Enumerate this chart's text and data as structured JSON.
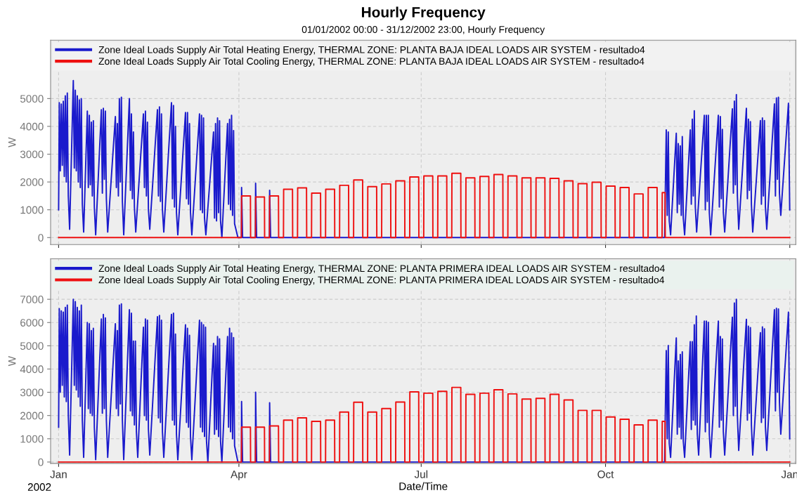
{
  "chart_data": [
    {
      "type": "line",
      "title": "Hourly Frequency",
      "subtitle": "01/01/2002 00:00 - 31/12/2002 23:00, Hourly Frequency",
      "ylabel": "W",
      "xlim": [
        "2001-12-28",
        "2003-01-04"
      ],
      "xticks": [
        {
          "value": "2002-01-01",
          "label": null
        },
        {
          "value": "2002-04-01",
          "label": null
        },
        {
          "value": "2002-07-01",
          "label": null
        },
        {
          "value": "2002-10-01",
          "label": null
        },
        {
          "value": "2003-01-01",
          "label": null
        }
      ],
      "ylim": [
        -250,
        7100
      ],
      "yticks": [
        0,
        1000,
        2000,
        3000,
        4000,
        5000
      ],
      "tick_labels": "y",
      "grid": true,
      "legend": "top",
      "line_style": "solid",
      "marker": "none",
      "series": [
        {
          "name": "Zone Ideal Loads Supply Air Total Heating Energy, THERMAL ZONE: PLANTA BAJA IDEAL LOADS AIR SYSTEM - resultado4",
          "color": "#1a1acc",
          "x": [
            "2002-01-01T00:00",
            "2002-01-01T08:00",
            "2002-01-01T20:00",
            "2002-01-02T08:00",
            "2002-01-02T20:00",
            "2002-01-03T08:00",
            "2002-01-03T20:00",
            "2002-01-04T08:00",
            "2002-01-04T20:00",
            "2002-01-05T08:00",
            "2002-01-05T20:00",
            "2002-01-06T12:00",
            "2002-01-08T08:00",
            "2002-01-08T20:00",
            "2002-01-09T08:00",
            "2002-01-09T20:00",
            "2002-01-10T08:00",
            "2002-01-10T20:00",
            "2002-01-11T08:00",
            "2002-01-11T20:00",
            "2002-01-12T08:00",
            "2002-01-12T20:00",
            "2002-01-13T12:00",
            "2002-01-15T08:00",
            "2002-01-15T20:00",
            "2002-01-16T08:00",
            "2002-01-16T20:00",
            "2002-01-17T08:00",
            "2002-01-17T20:00",
            "2002-01-18T08:00",
            "2002-01-18T20:00",
            "2002-01-19T12:00",
            "2002-01-22T08:00",
            "2002-01-22T20:00",
            "2002-01-23T08:00",
            "2002-01-23T20:00",
            "2002-01-24T08:00",
            "2002-01-24T20:00",
            "2002-01-25T12:00",
            "2002-01-29T08:00",
            "2002-01-29T20:00",
            "2002-01-30T08:00",
            "2002-01-30T20:00",
            "2002-01-31T08:00",
            "2002-01-31T20:00",
            "2002-02-01T08:00",
            "2002-02-01T20:00",
            "2002-02-02T12:00",
            "2002-02-05T08:00",
            "2002-02-05T20:00",
            "2002-02-06T08:00",
            "2002-02-06T20:00",
            "2002-02-07T08:00",
            "2002-02-07T20:00",
            "2002-02-08T12:00",
            "2002-02-12T08:00",
            "2002-02-12T20:00",
            "2002-02-13T08:00",
            "2002-02-13T20:00",
            "2002-02-14T08:00",
            "2002-02-14T20:00",
            "2002-02-15T12:00",
            "2002-02-19T08:00",
            "2002-02-19T20:00",
            "2002-02-20T08:00",
            "2002-02-20T20:00",
            "2002-02-21T08:00",
            "2002-02-21T20:00",
            "2002-02-22T12:00",
            "2002-02-26T08:00",
            "2002-02-26T20:00",
            "2002-02-27T08:00",
            "2002-02-27T20:00",
            "2002-02-28T08:00",
            "2002-02-28T20:00",
            "2002-03-01T12:00",
            "2002-03-05T08:00",
            "2002-03-05T20:00",
            "2002-03-06T08:00",
            "2002-03-06T20:00",
            "2002-03-07T08:00",
            "2002-03-07T20:00",
            "2002-03-08T12:00",
            "2002-03-12T08:00",
            "2002-03-12T20:00",
            "2002-03-13T08:00",
            "2002-03-13T20:00",
            "2002-03-14T08:00",
            "2002-03-14T20:00",
            "2002-03-15T12:00",
            "2002-03-19T08:00",
            "2002-03-19T20:00",
            "2002-03-20T08:00",
            "2002-03-20T20:00",
            "2002-03-21T08:00",
            "2002-03-21T20:00",
            "2002-03-22T08:00",
            "2002-03-22T20:00",
            "2002-03-23T12:00",
            "2002-03-26T08:00",
            "2002-03-26T20:00",
            "2002-03-27T08:00",
            "2002-03-27T20:00",
            "2002-03-28T08:00",
            "2002-03-28T20:00",
            "2002-03-29T08:00",
            "2002-03-29T20:00",
            "2002-03-31T12:00",
            "2002-04-02T06:00",
            "2002-04-02T08:00",
            "2002-04-02T20:00",
            "2002-04-09T06:00",
            "2002-04-09T08:00",
            "2002-04-09T20:00",
            "2002-04-16T06:00",
            "2002-04-16T08:00",
            "2002-04-16T20:00",
            "2002-10-30T12:00",
            "2002-10-31T08:00",
            "2002-10-31T20:00",
            "2002-11-01T08:00",
            "2002-11-01T20:00",
            "2002-11-02T12:00",
            "2002-11-05T08:00",
            "2002-11-05T20:00",
            "2002-11-06T08:00",
            "2002-11-06T20:00",
            "2002-11-07T08:00",
            "2002-11-07T20:00",
            "2002-11-08T08:00",
            "2002-11-08T20:00",
            "2002-11-09T12:00",
            "2002-11-12T08:00",
            "2002-11-12T20:00",
            "2002-11-13T08:00",
            "2002-11-13T20:00",
            "2002-11-14T08:00",
            "2002-11-14T20:00",
            "2002-11-15T12:00",
            "2002-11-19T08:00",
            "2002-11-19T20:00",
            "2002-11-20T08:00",
            "2002-11-20T20:00",
            "2002-11-21T08:00",
            "2002-11-21T20:00",
            "2002-11-22T12:00",
            "2002-11-26T08:00",
            "2002-11-26T20:00",
            "2002-11-27T08:00",
            "2002-11-27T20:00",
            "2002-11-28T08:00",
            "2002-11-28T20:00",
            "2002-11-29T12:00",
            "2002-12-03T08:00",
            "2002-12-03T20:00",
            "2002-12-04T08:00",
            "2002-12-04T20:00",
            "2002-12-05T08:00",
            "2002-12-05T20:00",
            "2002-12-06T12:00",
            "2002-12-10T08:00",
            "2002-12-10T20:00",
            "2002-12-11T08:00",
            "2002-12-11T20:00",
            "2002-12-12T08:00",
            "2002-12-12T20:00",
            "2002-12-13T12:00",
            "2002-12-17T08:00",
            "2002-12-17T20:00",
            "2002-12-18T08:00",
            "2002-12-18T20:00",
            "2002-12-19T08:00",
            "2002-12-19T20:00",
            "2002-12-20T12:00",
            "2002-12-24T08:00",
            "2002-12-24T20:00",
            "2002-12-25T08:00",
            "2002-12-25T20:00",
            "2002-12-26T08:00",
            "2002-12-26T20:00",
            "2002-12-27T12:00",
            "2002-12-31T08:00",
            "2002-12-31T23:00"
          ],
          "values": [
            1000,
            4850,
            2400,
            4800,
            2600,
            4900,
            2200,
            5100,
            2000,
            5200,
            1500,
            300,
            5650,
            2500,
            5300,
            2400,
            5100,
            2000,
            4950,
            1800,
            5000,
            1200,
            200,
            4550,
            1800,
            4400,
            1900,
            4150,
            1500,
            4200,
            1100,
            100,
            4600,
            1600,
            4650,
            2100,
            4550,
            1400,
            200,
            4350,
            1800,
            4100,
            1500,
            5000,
            2000,
            5050,
            1300,
            100,
            5000,
            1700,
            4450,
            1400,
            3800,
            1100,
            200,
            4450,
            1800,
            4550,
            1500,
            4150,
            1000,
            300,
            4600,
            1500,
            4700,
            1300,
            4450,
            1000,
            200,
            4850,
            1400,
            4750,
            1100,
            4000,
            900,
            100,
            4500,
            1400,
            4500,
            1200,
            4100,
            900,
            100,
            4450,
            1000,
            4400,
            900,
            4300,
            700,
            100,
            3800,
            700,
            4100,
            600,
            4300,
            900,
            4200,
            600,
            0,
            4100,
            1200,
            4250,
            1000,
            4400,
            800,
            3850,
            500,
            0,
            0,
            1800,
            0,
            0,
            1950,
            0,
            0,
            1700,
            0,
            0,
            3870,
            800,
            3800,
            600,
            100,
            3750,
            900,
            3380,
            1200,
            3300,
            800,
            3630,
            700,
            100,
            3870,
            1200,
            4260,
            1500,
            4560,
            1100,
            200,
            4400,
            1000,
            4400,
            1300,
            4400,
            900,
            100,
            4400,
            1100,
            4350,
            1400,
            3890,
            900,
            200,
            4630,
            1600,
            4910,
            1900,
            5140,
            1500,
            300,
            4650,
            1400,
            4260,
            1700,
            4170,
            1200,
            200,
            4210,
            1200,
            4300,
            1500,
            4210,
            1100,
            300,
            4810,
            1500,
            5020,
            2100,
            5050,
            1600,
            800,
            4830,
            1000
          ]
        },
        {
          "name": "Zone Ideal Loads Supply Air Total Cooling Energy, THERMAL ZONE: PLANTA BAJA IDEAL LOADS AIR SYSTEM - resultado4",
          "color": "#ee1111",
          "x": [
            "2002-01-01T00:00",
            "2002-04-02T06:00",
            "2002-04-02T08:00",
            "2002-04-06T18:00",
            "2002-04-06T20:00",
            "2002-04-09T06:00",
            "2002-04-09T08:00",
            "2002-04-13T18:00",
            "2002-04-13T20:00",
            "2002-04-16T06:00",
            "2002-04-16T08:00",
            "2002-04-20T18:00",
            "2002-04-20T20:00",
            "2002-04-23T06:00",
            "2002-04-23T08:00",
            "2002-04-27T18:00",
            "2002-04-27T20:00",
            "2002-04-30T06:00",
            "2002-04-30T08:00",
            "2002-05-04T18:00",
            "2002-05-04T20:00",
            "2002-05-07T06:00",
            "2002-05-07T08:00",
            "2002-05-11T18:00",
            "2002-05-11T20:00",
            "2002-05-14T06:00",
            "2002-05-14T08:00",
            "2002-05-18T18:00",
            "2002-05-18T20:00",
            "2002-05-21T06:00",
            "2002-05-21T08:00",
            "2002-05-25T18:00",
            "2002-05-25T20:00",
            "2002-05-28T06:00",
            "2002-05-28T08:00",
            "2002-06-01T18:00",
            "2002-06-01T20:00",
            "2002-06-04T06:00",
            "2002-06-04T08:00",
            "2002-06-08T18:00",
            "2002-06-08T20:00",
            "2002-06-11T06:00",
            "2002-06-11T08:00",
            "2002-06-15T18:00",
            "2002-06-15T20:00",
            "2002-06-18T06:00",
            "2002-06-18T08:00",
            "2002-06-22T18:00",
            "2002-06-22T20:00",
            "2002-06-25T06:00",
            "2002-06-25T08:00",
            "2002-06-29T18:00",
            "2002-06-29T20:00",
            "2002-07-02T06:00",
            "2002-07-02T08:00",
            "2002-07-06T18:00",
            "2002-07-06T20:00",
            "2002-07-09T06:00",
            "2002-07-09T08:00",
            "2002-07-13T18:00",
            "2002-07-13T20:00",
            "2002-07-16T06:00",
            "2002-07-16T08:00",
            "2002-07-20T18:00",
            "2002-07-20T20:00",
            "2002-07-23T06:00",
            "2002-07-23T08:00",
            "2002-07-27T18:00",
            "2002-07-27T20:00",
            "2002-07-30T06:00",
            "2002-07-30T08:00",
            "2002-08-03T18:00",
            "2002-08-03T20:00",
            "2002-08-06T06:00",
            "2002-08-06T08:00",
            "2002-08-10T18:00",
            "2002-08-10T20:00",
            "2002-08-13T06:00",
            "2002-08-13T08:00",
            "2002-08-17T18:00",
            "2002-08-17T20:00",
            "2002-08-20T06:00",
            "2002-08-20T08:00",
            "2002-08-24T18:00",
            "2002-08-24T20:00",
            "2002-08-27T06:00",
            "2002-08-27T08:00",
            "2002-08-31T18:00",
            "2002-08-31T20:00",
            "2002-09-03T06:00",
            "2002-09-03T08:00",
            "2002-09-07T18:00",
            "2002-09-07T20:00",
            "2002-09-10T06:00",
            "2002-09-10T08:00",
            "2002-09-14T18:00",
            "2002-09-14T20:00",
            "2002-09-17T06:00",
            "2002-09-17T08:00",
            "2002-09-21T18:00",
            "2002-09-21T20:00",
            "2002-09-24T06:00",
            "2002-09-24T08:00",
            "2002-09-28T18:00",
            "2002-09-28T20:00",
            "2002-10-01T06:00",
            "2002-10-01T08:00",
            "2002-10-05T18:00",
            "2002-10-05T20:00",
            "2002-10-08T06:00",
            "2002-10-08T08:00",
            "2002-10-12T18:00",
            "2002-10-12T20:00",
            "2002-10-15T06:00",
            "2002-10-15T08:00",
            "2002-10-19T18:00",
            "2002-10-19T20:00",
            "2002-10-22T06:00",
            "2002-10-22T08:00",
            "2002-10-26T18:00",
            "2002-10-26T20:00",
            "2002-10-29T06:00",
            "2002-10-29T08:00",
            "2002-10-30T18:00",
            "2002-10-30T20:00",
            "2002-12-31T23:00"
          ],
          "values": [
            0,
            0,
            1500,
            1500,
            0,
            0,
            1460,
            1460,
            0,
            0,
            1500,
            1500,
            0,
            0,
            1740,
            1740,
            0,
            0,
            1790,
            1790,
            0,
            0,
            1600,
            1600,
            0,
            0,
            1740,
            1740,
            0,
            0,
            1880,
            1880,
            0,
            0,
            2070,
            2070,
            0,
            0,
            1830,
            1830,
            0,
            0,
            1930,
            1930,
            0,
            0,
            2040,
            2040,
            0,
            0,
            2180,
            2180,
            0,
            0,
            2220,
            2220,
            0,
            0,
            2220,
            2220,
            0,
            0,
            2310,
            2310,
            0,
            0,
            2150,
            2150,
            0,
            0,
            2200,
            2200,
            0,
            0,
            2270,
            2270,
            0,
            0,
            2220,
            2220,
            0,
            0,
            2150,
            2150,
            0,
            0,
            2150,
            2150,
            0,
            0,
            2130,
            2130,
            0,
            0,
            2040,
            2040,
            0,
            0,
            1940,
            1940,
            0,
            0,
            1990,
            1990,
            0,
            0,
            1850,
            1850,
            0,
            0,
            1800,
            1800,
            0,
            0,
            1570,
            1570,
            0,
            0,
            1800,
            1800,
            0,
            0,
            1620,
            1620,
            0,
            0
          ]
        }
      ]
    },
    {
      "type": "line",
      "ylabel": "W",
      "xlabel": "Date/Time",
      "annotations": [
        "2002"
      ],
      "xlim": [
        "2001-12-28",
        "2003-01-04"
      ],
      "xticks": [
        {
          "value": "2002-01-01",
          "label": "Jan"
        },
        {
          "value": "2002-04-01",
          "label": "Apr"
        },
        {
          "value": "2002-07-01",
          "label": "Jul"
        },
        {
          "value": "2002-10-01",
          "label": "Oct"
        },
        {
          "value": "2003-01-01",
          "label": "Jan"
        }
      ],
      "ylim": [
        -60,
        8740
      ],
      "yticks": [
        0,
        1000,
        2000,
        3000,
        4000,
        5000,
        6000,
        7000
      ],
      "grid": true,
      "legend": "top",
      "line_style": "solid",
      "marker": "none",
      "series": [
        {
          "name": "Zone Ideal Loads Supply Air Total Heating Energy, THERMAL ZONE: PLANTA PRIMERA IDEAL LOADS AIR SYSTEM - resultado4",
          "color": "#1a1acc",
          "x": [
            "2002-01-01T00:00",
            "2002-01-01T08:00",
            "2002-01-01T20:00",
            "2002-01-02T08:00",
            "2002-01-02T20:00",
            "2002-01-03T08:00",
            "2002-01-03T20:00",
            "2002-01-04T08:00",
            "2002-01-04T20:00",
            "2002-01-05T08:00",
            "2002-01-05T20:00",
            "2002-01-06T12:00",
            "2002-01-08T08:00",
            "2002-01-08T20:00",
            "2002-01-09T08:00",
            "2002-01-09T20:00",
            "2002-01-10T08:00",
            "2002-01-10T20:00",
            "2002-01-11T08:00",
            "2002-01-11T20:00",
            "2002-01-12T08:00",
            "2002-01-12T20:00",
            "2002-01-13T12:00",
            "2002-01-15T08:00",
            "2002-01-15T20:00",
            "2002-01-16T08:00",
            "2002-01-16T20:00",
            "2002-01-17T08:00",
            "2002-01-17T20:00",
            "2002-01-18T08:00",
            "2002-01-18T20:00",
            "2002-01-19T12:00",
            "2002-01-22T08:00",
            "2002-01-22T20:00",
            "2002-01-23T08:00",
            "2002-01-23T20:00",
            "2002-01-24T08:00",
            "2002-01-24T20:00",
            "2002-01-25T12:00",
            "2002-01-29T08:00",
            "2002-01-29T20:00",
            "2002-01-30T08:00",
            "2002-01-30T20:00",
            "2002-01-31T08:00",
            "2002-01-31T20:00",
            "2002-02-01T08:00",
            "2002-02-01T20:00",
            "2002-02-02T12:00",
            "2002-02-05T08:00",
            "2002-02-05T20:00",
            "2002-02-06T08:00",
            "2002-02-06T20:00",
            "2002-02-07T08:00",
            "2002-02-07T20:00",
            "2002-02-08T08:00",
            "2002-02-08T20:00",
            "2002-02-09T12:00",
            "2002-02-12T08:00",
            "2002-02-12T20:00",
            "2002-02-13T08:00",
            "2002-02-13T20:00",
            "2002-02-14T08:00",
            "2002-02-14T20:00",
            "2002-02-15T12:00",
            "2002-02-19T08:00",
            "2002-02-19T20:00",
            "2002-02-20T08:00",
            "2002-02-20T20:00",
            "2002-02-21T08:00",
            "2002-02-21T20:00",
            "2002-02-22T12:00",
            "2002-02-26T08:00",
            "2002-02-26T20:00",
            "2002-02-27T08:00",
            "2002-02-27T20:00",
            "2002-02-28T08:00",
            "2002-02-28T20:00",
            "2002-03-01T12:00",
            "2002-03-05T08:00",
            "2002-03-05T20:00",
            "2002-03-06T08:00",
            "2002-03-06T20:00",
            "2002-03-07T08:00",
            "2002-03-07T20:00",
            "2002-03-08T12:00",
            "2002-03-12T08:00",
            "2002-03-12T20:00",
            "2002-03-13T08:00",
            "2002-03-13T20:00",
            "2002-03-14T08:00",
            "2002-03-14T20:00",
            "2002-03-15T08:00",
            "2002-03-15T20:00",
            "2002-03-16T12:00",
            "2002-03-19T08:00",
            "2002-03-19T20:00",
            "2002-03-20T08:00",
            "2002-03-20T20:00",
            "2002-03-21T08:00",
            "2002-03-21T20:00",
            "2002-03-22T08:00",
            "2002-03-22T20:00",
            "2002-03-23T12:00",
            "2002-03-26T08:00",
            "2002-03-26T20:00",
            "2002-03-27T08:00",
            "2002-03-27T20:00",
            "2002-03-28T08:00",
            "2002-03-28T20:00",
            "2002-03-29T08:00",
            "2002-03-29T20:00",
            "2002-03-31T12:00",
            "2002-04-02T06:00",
            "2002-04-02T08:00",
            "2002-04-02T20:00",
            "2002-04-09T06:00",
            "2002-04-09T08:00",
            "2002-04-09T20:00",
            "2002-04-16T06:00",
            "2002-04-16T08:00",
            "2002-04-16T20:00",
            "2002-10-30T12:00",
            "2002-10-31T08:00",
            "2002-10-31T20:00",
            "2002-11-01T08:00",
            "2002-11-01T20:00",
            "2002-11-02T12:00",
            "2002-11-05T08:00",
            "2002-11-05T20:00",
            "2002-11-06T08:00",
            "2002-11-06T20:00",
            "2002-11-07T08:00",
            "2002-11-07T20:00",
            "2002-11-08T08:00",
            "2002-11-08T20:00",
            "2002-11-09T12:00",
            "2002-11-12T08:00",
            "2002-11-12T20:00",
            "2002-11-13T08:00",
            "2002-11-13T20:00",
            "2002-11-14T08:00",
            "2002-11-14T20:00",
            "2002-11-15T08:00",
            "2002-11-15T20:00",
            "2002-11-16T12:00",
            "2002-11-19T08:00",
            "2002-11-19T20:00",
            "2002-11-20T08:00",
            "2002-11-20T20:00",
            "2002-11-21T08:00",
            "2002-11-21T20:00",
            "2002-11-22T12:00",
            "2002-11-26T08:00",
            "2002-11-26T20:00",
            "2002-11-27T08:00",
            "2002-11-27T20:00",
            "2002-11-28T08:00",
            "2002-11-28T20:00",
            "2002-11-29T12:00",
            "2002-12-03T08:00",
            "2002-12-03T20:00",
            "2002-12-04T08:00",
            "2002-12-04T20:00",
            "2002-12-05T08:00",
            "2002-12-05T20:00",
            "2002-12-06T12:00",
            "2002-12-10T08:00",
            "2002-12-10T20:00",
            "2002-12-11T08:00",
            "2002-12-11T20:00",
            "2002-12-12T08:00",
            "2002-12-12T20:00",
            "2002-12-13T12:00",
            "2002-12-17T08:00",
            "2002-12-17T20:00",
            "2002-12-18T08:00",
            "2002-12-18T20:00",
            "2002-12-19T08:00",
            "2002-12-19T20:00",
            "2002-12-20T12:00",
            "2002-12-24T08:00",
            "2002-12-24T20:00",
            "2002-12-25T08:00",
            "2002-12-25T20:00",
            "2002-12-26T08:00",
            "2002-12-26T20:00",
            "2002-12-27T12:00",
            "2002-12-31T08:00",
            "2002-12-31T23:00"
          ],
          "values": [
            1500,
            6600,
            3000,
            6500,
            3300,
            6450,
            2800,
            6650,
            2600,
            6750,
            2000,
            300,
            7000,
            3300,
            6900,
            3100,
            6650,
            2800,
            6500,
            2400,
            6750,
            1800,
            200,
            6000,
            2300,
            5950,
            2100,
            5650,
            2000,
            5750,
            1500,
            100,
            6150,
            2100,
            6350,
            2300,
            6200,
            1800,
            200,
            5950,
            2300,
            5650,
            2000,
            6750,
            2500,
            6800,
            1800,
            100,
            6550,
            2200,
            6400,
            2000,
            5200,
            1600,
            5200,
            1300,
            200,
            5800,
            2000,
            6150,
            1800,
            6100,
            1400,
            300,
            6250,
            1900,
            6300,
            1700,
            6100,
            1300,
            200,
            6350,
            1800,
            6400,
            1600,
            5500,
            1200,
            100,
            5900,
            1700,
            5750,
            1500,
            5450,
            1100,
            100,
            6100,
            1500,
            6000,
            1300,
            5900,
            1100,
            5800,
            900,
            0,
            5100,
            1200,
            5000,
            1400,
            5400,
            1100,
            5300,
            900,
            0,
            5400,
            1500,
            5750,
            1300,
            5550,
            1000,
            5350,
            700,
            0,
            0,
            2600,
            0,
            0,
            3000,
            0,
            0,
            2550,
            0,
            0,
            4790,
            1000,
            5010,
            800,
            200,
            5340,
            1200,
            4350,
            1500,
            4630,
            1000,
            4740,
            900,
            200,
            5180,
            1400,
            5180,
            1800,
            5900,
            1600,
            6280,
            1200,
            300,
            6060,
            1300,
            6060,
            1700,
            6010,
            1200,
            200,
            6060,
            1500,
            5400,
            1800,
            5290,
            1300,
            300,
            6230,
            2000,
            6840,
            2400,
            7000,
            2000,
            500,
            6140,
            1800,
            5840,
            2100,
            5780,
            1600,
            300,
            5560,
            1700,
            5810,
            1900,
            5730,
            1500,
            500,
            6550,
            2200,
            6610,
            3000,
            6580,
            2600,
            1200,
            6450,
            1000
          ]
        },
        {
          "name": "Zone Ideal Loads Supply Air Total Cooling Energy, THERMAL ZONE: PLANTA PRIMERA IDEAL LOADS AIR SYSTEM - resultado4",
          "color": "#ee1111",
          "x": [
            "2002-01-01T00:00",
            "2002-04-02T06:00",
            "2002-04-02T08:00",
            "2002-04-06T18:00",
            "2002-04-06T20:00",
            "2002-04-09T06:00",
            "2002-04-09T08:00",
            "2002-04-13T18:00",
            "2002-04-13T20:00",
            "2002-04-16T06:00",
            "2002-04-16T08:00",
            "2002-04-20T18:00",
            "2002-04-20T20:00",
            "2002-04-23T06:00",
            "2002-04-23T08:00",
            "2002-04-27T18:00",
            "2002-04-27T20:00",
            "2002-04-30T06:00",
            "2002-04-30T08:00",
            "2002-05-04T18:00",
            "2002-05-04T20:00",
            "2002-05-07T06:00",
            "2002-05-07T08:00",
            "2002-05-11T18:00",
            "2002-05-11T20:00",
            "2002-05-14T06:00",
            "2002-05-14T08:00",
            "2002-05-18T18:00",
            "2002-05-18T20:00",
            "2002-05-21T06:00",
            "2002-05-21T08:00",
            "2002-05-25T18:00",
            "2002-05-25T20:00",
            "2002-05-28T06:00",
            "2002-05-28T08:00",
            "2002-06-01T18:00",
            "2002-06-01T20:00",
            "2002-06-04T06:00",
            "2002-06-04T08:00",
            "2002-06-08T18:00",
            "2002-06-08T20:00",
            "2002-06-11T06:00",
            "2002-06-11T08:00",
            "2002-06-15T18:00",
            "2002-06-15T20:00",
            "2002-06-18T06:00",
            "2002-06-18T08:00",
            "2002-06-22T18:00",
            "2002-06-22T20:00",
            "2002-06-25T06:00",
            "2002-06-25T08:00",
            "2002-06-29T18:00",
            "2002-06-29T20:00",
            "2002-07-02T06:00",
            "2002-07-02T08:00",
            "2002-07-06T18:00",
            "2002-07-06T20:00",
            "2002-07-09T06:00",
            "2002-07-09T08:00",
            "2002-07-13T18:00",
            "2002-07-13T20:00",
            "2002-07-16T06:00",
            "2002-07-16T08:00",
            "2002-07-20T18:00",
            "2002-07-20T20:00",
            "2002-07-23T06:00",
            "2002-07-23T08:00",
            "2002-07-27T18:00",
            "2002-07-27T20:00",
            "2002-07-30T06:00",
            "2002-07-30T08:00",
            "2002-08-03T18:00",
            "2002-08-03T20:00",
            "2002-08-06T06:00",
            "2002-08-06T08:00",
            "2002-08-10T18:00",
            "2002-08-10T20:00",
            "2002-08-13T06:00",
            "2002-08-13T08:00",
            "2002-08-17T18:00",
            "2002-08-17T20:00",
            "2002-08-20T06:00",
            "2002-08-20T08:00",
            "2002-08-24T18:00",
            "2002-08-24T20:00",
            "2002-08-27T06:00",
            "2002-08-27T08:00",
            "2002-08-31T18:00",
            "2002-08-31T20:00",
            "2002-09-03T06:00",
            "2002-09-03T08:00",
            "2002-09-07T18:00",
            "2002-09-07T20:00",
            "2002-09-10T06:00",
            "2002-09-10T08:00",
            "2002-09-14T18:00",
            "2002-09-14T20:00",
            "2002-09-17T06:00",
            "2002-09-17T08:00",
            "2002-09-21T18:00",
            "2002-09-21T20:00",
            "2002-09-24T06:00",
            "2002-09-24T08:00",
            "2002-09-28T18:00",
            "2002-09-28T20:00",
            "2002-10-01T06:00",
            "2002-10-01T08:00",
            "2002-10-05T18:00",
            "2002-10-05T20:00",
            "2002-10-08T06:00",
            "2002-10-08T08:00",
            "2002-10-12T18:00",
            "2002-10-12T20:00",
            "2002-10-15T06:00",
            "2002-10-15T08:00",
            "2002-10-19T18:00",
            "2002-10-19T20:00",
            "2002-10-22T06:00",
            "2002-10-22T08:00",
            "2002-10-26T18:00",
            "2002-10-26T20:00",
            "2002-10-29T06:00",
            "2002-10-29T08:00",
            "2002-10-30T18:00",
            "2002-10-30T20:00",
            "2002-12-31T23:00"
          ],
          "values": [
            0,
            0,
            1500,
            1500,
            0,
            0,
            1500,
            1500,
            0,
            0,
            1550,
            1550,
            0,
            0,
            1800,
            1800,
            0,
            0,
            1900,
            1900,
            0,
            0,
            1750,
            1750,
            0,
            0,
            1800,
            1800,
            0,
            0,
            2150,
            2150,
            0,
            0,
            2570,
            2570,
            0,
            0,
            2150,
            2150,
            0,
            0,
            2300,
            2300,
            0,
            0,
            2580,
            2580,
            0,
            0,
            3020,
            3020,
            0,
            0,
            2960,
            2960,
            0,
            0,
            3040,
            3040,
            0,
            0,
            3210,
            3210,
            0,
            0,
            2910,
            2910,
            0,
            0,
            2960,
            2960,
            0,
            0,
            3110,
            3110,
            0,
            0,
            2930,
            2930,
            0,
            0,
            2710,
            2710,
            0,
            0,
            2740,
            2740,
            0,
            0,
            2910,
            2910,
            0,
            0,
            2670,
            2670,
            0,
            0,
            2220,
            2220,
            0,
            0,
            2220,
            2220,
            0,
            0,
            1940,
            1940,
            0,
            0,
            1840,
            1840,
            0,
            0,
            1600,
            1600,
            0,
            0,
            1800,
            1800,
            0,
            0,
            1750,
            1750,
            0,
            0
          ]
        }
      ]
    }
  ]
}
